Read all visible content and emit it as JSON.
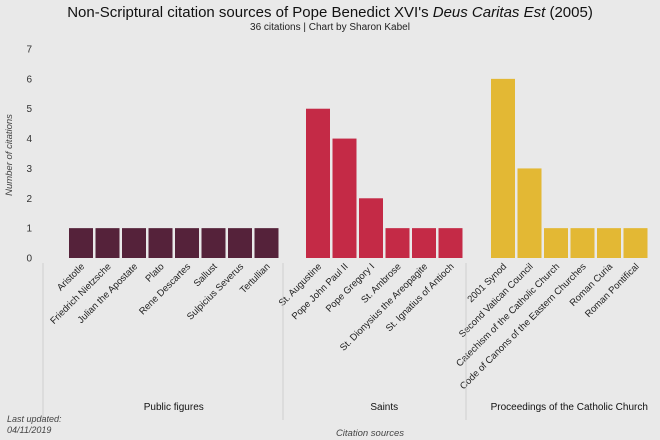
{
  "chart_data": {
    "type": "bar",
    "title_main": "Non-Scriptural citation sources of Pope Benedict XVI's ",
    "title_italic": "Deus Caritas Est",
    "title_end": " (2005)",
    "subtitle": "36 citations | Chart by Sharon Kabel",
    "xlabel": "Citation sources",
    "ylabel": "Number of citations",
    "ylim": [
      0,
      7
    ],
    "yticks": [
      "0",
      "1",
      "2",
      "3",
      "4",
      "5",
      "6",
      "7"
    ],
    "grid": false,
    "legend": "none",
    "groups": [
      {
        "name": "Public figures",
        "color": "#55223a",
        "categories": [
          "Aristotle",
          "Friedrich Nietzsche",
          "Julian the Apostate",
          "Plato",
          "Rene Descartes",
          "Sallust",
          "Sulpicius Severus",
          "Tertullian"
        ],
        "values": [
          1,
          1,
          1,
          1,
          1,
          1,
          1,
          1
        ]
      },
      {
        "name": "Saints",
        "color": "#c42a46",
        "categories": [
          "St. Augustine",
          "Pope John Paul II",
          "Pope Gregory I",
          "St. Ambrose",
          "St. Dionysius the Areopagite",
          "St. Ignatius of Antioch"
        ],
        "values": [
          5,
          4,
          2,
          1,
          1,
          1
        ]
      },
      {
        "name": "Proceedings of the Catholic Church",
        "color": "#e3b834",
        "categories": [
          "2001 Synod",
          "Second Vatican Council",
          "Catechism of the Catholic Church",
          "Code of Canons of the Eastern Churches",
          "Roman Curia",
          "Roman Pontifical"
        ],
        "values": [
          6,
          3,
          1,
          1,
          1,
          1
        ]
      }
    ]
  },
  "footer": {
    "updated_label": "Last updated:",
    "updated_date": "04/11/2019"
  }
}
